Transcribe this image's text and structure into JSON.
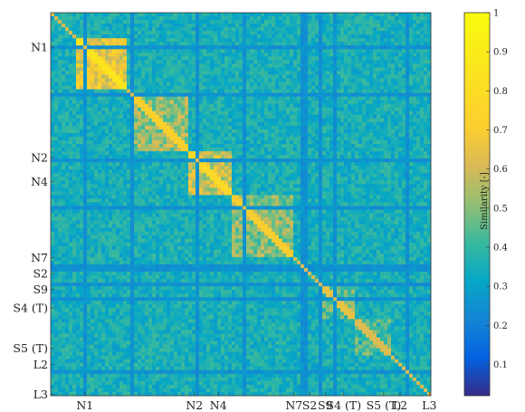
{
  "chart_data": {
    "type": "heatmap",
    "title": "",
    "xlabel": "",
    "ylabel": "",
    "y_tick_labels": [
      "N1",
      "N2",
      "N4",
      "N7",
      "S2",
      "S9",
      "S4 (T)",
      "S5 (T)",
      "L2",
      "L3"
    ],
    "x_tick_labels": [
      "N1",
      "N2",
      "N4",
      "N7",
      "S2",
      "S9",
      "S4 (T)",
      "S5 (T)",
      "L2",
      "L3"
    ],
    "tick_positions": [
      0.09,
      0.378,
      0.441,
      0.64,
      0.681,
      0.722,
      0.771,
      0.876,
      0.919,
      0.996
    ],
    "colorbar": {
      "label": "Similarity [-]",
      "range": [
        0.02,
        1
      ],
      "ticks": [
        0.1,
        0.2,
        0.3,
        0.4,
        0.5,
        0.6,
        0.7,
        0.8,
        0.9,
        1
      ],
      "tick_labels": [
        "0.1",
        "0.2",
        "0.3",
        "0.4",
        "0.5",
        "0.6",
        "0.7",
        "0.8",
        "0.9",
        "1"
      ],
      "colormap": "parula"
    },
    "matrix_description": {
      "background_similarity": 0.35,
      "diagonal_blocks": [
        {
          "from": 0.07,
          "to": 0.2,
          "similarity": 0.75
        },
        {
          "from": 0.22,
          "to": 0.36,
          "similarity": 0.62
        },
        {
          "from": 0.36,
          "to": 0.48,
          "similarity": 0.68
        },
        {
          "from": 0.48,
          "to": 0.64,
          "similarity": 0.6
        },
        {
          "from": 0.71,
          "to": 0.8,
          "similarity": 0.55
        },
        {
          "from": 0.8,
          "to": 0.9,
          "similarity": 0.52
        }
      ],
      "low_similarity_lines": [
        0.085,
        0.205,
        0.378,
        0.5,
        0.661,
        0.668,
        0.708,
        0.74,
        0.93
      ],
      "grid": false
    }
  }
}
